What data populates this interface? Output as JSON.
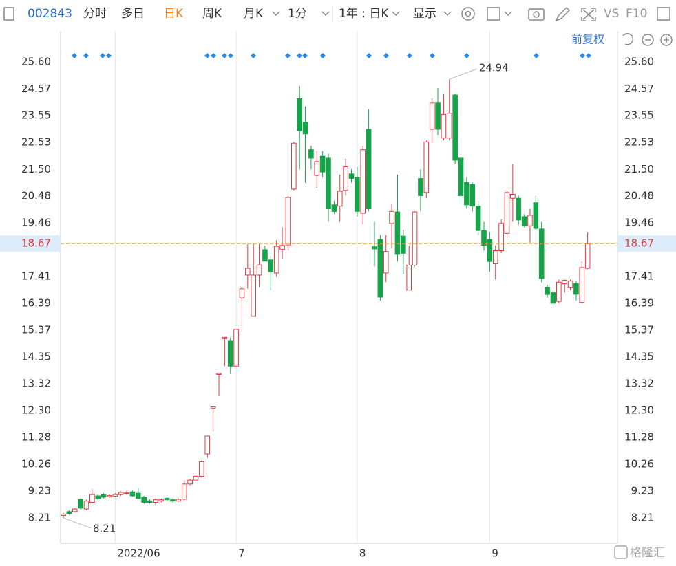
{
  "toolbar": {
    "code": "002843",
    "tabs": [
      "分时",
      "多日",
      "日K",
      "周K",
      "月K",
      "1分",
      "1年 : 日K",
      "显示",
      "VS",
      "F10"
    ],
    "adjust": "前复权"
  },
  "watermark": "格隆汇",
  "chart_data": {
    "type": "candlestick",
    "categories": [
      null,
      null,
      null,
      null,
      null,
      null,
      null,
      null,
      null,
      "2022/06",
      null,
      null,
      null,
      null,
      null,
      null,
      null,
      null,
      null,
      null,
      null,
      null,
      null,
      null,
      null,
      null,
      null,
      null,
      null,
      null,
      "7",
      null,
      null,
      null,
      null,
      null,
      null,
      null,
      null,
      null,
      null,
      null,
      null,
      null,
      null,
      null,
      null,
      null,
      null,
      null,
      null,
      "8",
      null,
      null,
      null,
      null,
      null,
      null,
      null,
      null,
      null,
      null,
      null,
      null,
      null,
      null,
      null,
      null,
      null,
      null,
      null,
      null,
      null,
      null,
      "9",
      null,
      null,
      null,
      null,
      null,
      null,
      null,
      null,
      null,
      null,
      null,
      null,
      null,
      null,
      null,
      null,
      null
    ],
    "open": [
      8.3,
      8.45,
      8.45,
      8.92,
      8.55,
      8.8,
      9.05,
      9.1,
      9.02,
      9.04,
      9.1,
      9.14,
      9.2,
      9.15,
      9.0,
      8.86,
      8.8,
      8.85,
      8.96,
      8.9,
      8.85,
      8.92,
      9.5,
      9.65,
      9.8,
      10.65,
      12.4,
      13.68,
      15.05,
      14.95,
      14.0,
      16.6,
      17.47,
      15.9,
      17.47,
      18.44,
      18.05,
      17.55,
      18.45,
      18.62,
      20.75,
      24.2,
      23.3,
      22.25,
      21.27,
      22.0,
      21.93,
      20.15,
      20.1,
      20.7,
      21.33,
      21.2,
      19.83,
      23.03,
      18.55,
      18.83,
      17.55,
      19.44,
      19.88,
      18.96,
      16.9,
      17.85,
      21.15,
      20.62,
      23.03,
      24.03,
      22.7,
      22.7,
      24.34,
      21.93,
      21.0,
      20.93,
      20.1,
      19.17,
      18.83,
      17.9,
      18.4,
      19.06,
      20.4,
      20.4,
      19.7,
      19.35,
      20.23,
      19.23,
      17.0,
      16.8,
      16.47,
      17.14,
      16.99,
      17.15,
      16.43,
      17.73
    ],
    "high": [
      8.4,
      8.5,
      8.58,
      8.95,
      8.9,
      9.3,
      9.12,
      9.15,
      9.1,
      9.15,
      9.22,
      9.25,
      9.25,
      9.35,
      9.05,
      8.92,
      8.95,
      8.95,
      9.0,
      8.95,
      8.95,
      9.65,
      9.7,
      9.85,
      10.4,
      11.35,
      12.45,
      13.72,
      15.12,
      15.1,
      15.4,
      17.0,
      18.65,
      18.65,
      18.65,
      18.6,
      18.2,
      18.8,
      19.3,
      20.48,
      22.55,
      24.68,
      23.9,
      22.4,
      22.2,
      22.2,
      22.1,
      20.3,
      21.3,
      21.9,
      21.5,
      21.6,
      22.4,
      23.8,
      19.5,
      19.0,
      19.0,
      20.2,
      21.3,
      19.2,
      18.6,
      19.9,
      21.5,
      22.6,
      24.2,
      24.6,
      24.4,
      24.94,
      24.4,
      22.0,
      21.2,
      21.0,
      20.3,
      19.5,
      19.1,
      18.6,
      19.6,
      20.7,
      21.7,
      20.5,
      19.8,
      20.0,
      20.5,
      19.5,
      17.1,
      16.9,
      17.3,
      17.3,
      17.3,
      17.25,
      18.0,
      19.1
    ],
    "low": [
      8.21,
      8.33,
      8.42,
      8.52,
      8.5,
      8.75,
      8.9,
      8.95,
      8.98,
      9.0,
      9.05,
      9.1,
      9.02,
      8.92,
      8.75,
      8.76,
      8.72,
      8.8,
      8.86,
      8.8,
      8.82,
      8.9,
      9.45,
      9.6,
      9.75,
      10.5,
      11.5,
      12.85,
      14.0,
      13.7,
      14.0,
      15.3,
      16.95,
      15.9,
      17.0,
      18.0,
      16.9,
      17.4,
      18.1,
      18.4,
      20.7,
      21.5,
      21.0,
      21.5,
      20.8,
      21.2,
      19.5,
      19.8,
      19.5,
      20.5,
      21.0,
      19.7,
      19.4,
      19.9,
      17.8,
      16.5,
      17.2,
      18.5,
      18.0,
      17.5,
      16.9,
      17.8,
      19.9,
      20.4,
      22.5,
      22.8,
      22.6,
      22.6,
      21.7,
      20.2,
      20.0,
      19.9,
      19.0,
      18.4,
      17.6,
      17.3,
      18.3,
      18.9,
      19.5,
      19.4,
      19.3,
      18.7,
      19.2,
      17.2,
      16.6,
      16.3,
      16.4,
      16.8,
      16.9,
      16.5,
      16.4,
      17.7
    ],
    "close": [
      8.35,
      8.38,
      8.55,
      8.58,
      8.85,
      9.1,
      8.95,
      9.0,
      9.06,
      9.1,
      9.18,
      9.16,
      9.05,
      8.95,
      8.8,
      8.8,
      8.9,
      8.9,
      8.9,
      8.85,
      8.92,
      9.5,
      9.65,
      9.8,
      10.35,
      11.33,
      12.45,
      13.72,
      15.1,
      14.0,
      15.4,
      16.95,
      17.73,
      17.47,
      17.86,
      18.0,
      17.6,
      18.57,
      18.6,
      20.43,
      22.5,
      22.98,
      22.85,
      21.93,
      21.8,
      21.4,
      20.0,
      19.9,
      20.67,
      21.6,
      21.15,
      19.9,
      22.25,
      20.0,
      18.47,
      16.63,
      18.37,
      19.9,
      18.26,
      18.3,
      17.85,
      19.88,
      20.5,
      22.55,
      24.03,
      23.03,
      23.6,
      23.64,
      21.85,
      20.5,
      20.15,
      20.1,
      19.17,
      18.6,
      17.99,
      18.4,
      19.44,
      20.62,
      20.55,
      19.57,
      19.35,
      19.75,
      19.25,
      17.34,
      16.73,
      16.4,
      17.2,
      17.27,
      17.25,
      16.74,
      17.76,
      18.67
    ],
    "up_color": "#e0393e",
    "down_color": "#17a34a",
    "current_color": "#e6a23c",
    "ylim": [
      7.24,
      26.78
    ],
    "yticks": [
      {
        "value": 25.6,
        "label": "25.60"
      },
      24.57,
      23.55,
      22.53,
      {
        "value": 21.5,
        "label": "21.50"
      },
      20.48,
      19.46,
      17.41,
      16.39,
      15.37,
      14.35,
      13.32,
      {
        "value": 12.3,
        "label": "12.30"
      },
      11.28,
      10.26,
      9.23,
      8.21
    ],
    "max_index": 67,
    "min_index": 0,
    "grid": true
  }
}
